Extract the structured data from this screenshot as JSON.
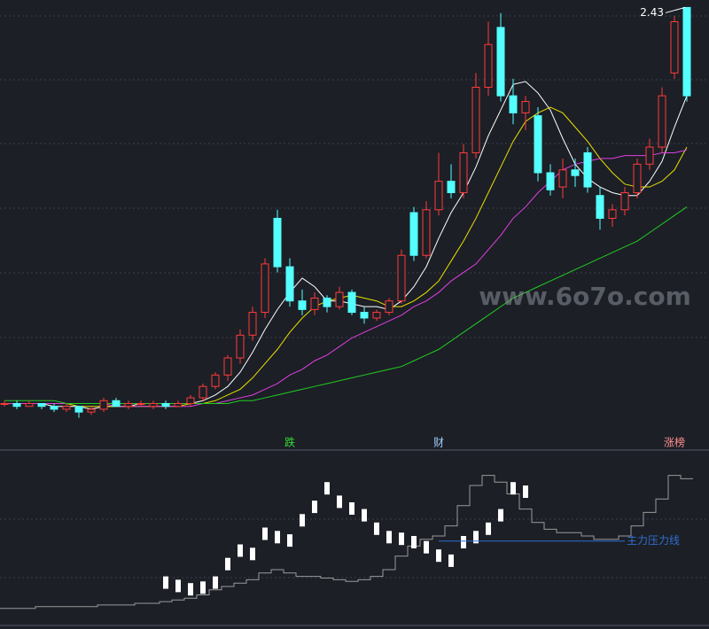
{
  "watermark": "www.6o7o.com",
  "chart_data": [
    {
      "type": "candlestick",
      "up_color": "#ff3b3b",
      "down_color": "#54ffff",
      "ylim": [
        0.97,
        2.45
      ],
      "open": [
        1.04,
        1.04,
        1.03,
        1.04,
        1.03,
        1.02,
        1.03,
        1.01,
        1.02,
        1.05,
        1.03,
        1.04,
        1.03,
        1.04,
        1.03,
        1.04,
        1.06,
        1.1,
        1.14,
        1.2,
        1.28,
        1.36,
        1.69,
        1.52,
        1.4,
        1.37,
        1.41,
        1.38,
        1.43,
        1.36,
        1.34,
        1.36,
        1.4,
        1.71,
        1.56,
        1.72,
        1.82,
        1.78,
        1.92,
        2.15,
        2.36,
        2.12,
        2.06,
        2.05,
        1.85,
        1.8,
        1.86,
        1.92,
        1.77,
        1.69,
        1.72,
        1.78,
        1.88,
        1.94,
        2.2,
        2.43
      ],
      "high": [
        1.05,
        1.05,
        1.05,
        1.04,
        1.04,
        1.04,
        1.03,
        1.03,
        1.06,
        1.06,
        1.05,
        1.05,
        1.05,
        1.05,
        1.05,
        1.07,
        1.11,
        1.15,
        1.21,
        1.3,
        1.38,
        1.55,
        1.72,
        1.55,
        1.44,
        1.43,
        1.42,
        1.45,
        1.44,
        1.38,
        1.37,
        1.41,
        1.58,
        1.73,
        1.75,
        1.92,
        1.88,
        1.95,
        2.2,
        2.38,
        2.41,
        2.18,
        2.12,
        2.08,
        1.88,
        1.9,
        1.9,
        1.94,
        1.8,
        1.74,
        1.8,
        1.9,
        1.97,
        2.15,
        2.4,
        2.43
      ],
      "low": [
        1.03,
        1.02,
        1.03,
        1.02,
        1.01,
        1.01,
        0.99,
        1.0,
        1.01,
        1.03,
        1.02,
        1.03,
        1.02,
        1.02,
        1.03,
        1.03,
        1.05,
        1.09,
        1.12,
        1.18,
        1.26,
        1.34,
        1.5,
        1.38,
        1.35,
        1.35,
        1.36,
        1.37,
        1.35,
        1.32,
        1.33,
        1.35,
        1.39,
        1.54,
        1.55,
        1.7,
        1.76,
        1.76,
        1.9,
        2.12,
        2.1,
        2.02,
        2.0,
        1.82,
        1.77,
        1.76,
        1.8,
        1.78,
        1.65,
        1.66,
        1.7,
        1.76,
        1.86,
        1.92,
        2.18,
        2.1
      ],
      "close": [
        1.04,
        1.03,
        1.04,
        1.03,
        1.02,
        1.03,
        1.01,
        1.02,
        1.05,
        1.03,
        1.04,
        1.04,
        1.04,
        1.03,
        1.04,
        1.06,
        1.1,
        1.14,
        1.2,
        1.28,
        1.36,
        1.53,
        1.52,
        1.4,
        1.37,
        1.41,
        1.38,
        1.43,
        1.36,
        1.34,
        1.36,
        1.4,
        1.56,
        1.56,
        1.72,
        1.82,
        1.78,
        1.92,
        2.15,
        2.3,
        2.12,
        2.06,
        2.1,
        1.85,
        1.79,
        1.86,
        1.84,
        1.8,
        1.69,
        1.72,
        1.78,
        1.88,
        1.94,
        2.12,
        2.38,
        2.12
      ],
      "series": [
        {
          "color": "#ffffff",
          "values": [
            1.04,
            1.04,
            1.04,
            1.04,
            1.03,
            1.03,
            1.03,
            1.02,
            1.03,
            1.03,
            1.03,
            1.04,
            1.04,
            1.04,
            1.04,
            1.04,
            1.05,
            1.07,
            1.1,
            1.15,
            1.22,
            1.3,
            1.37,
            1.43,
            1.48,
            1.45,
            1.4,
            1.4,
            1.39,
            1.38,
            1.38,
            1.37,
            1.4,
            1.45,
            1.52,
            1.62,
            1.71,
            1.78,
            1.87,
            1.98,
            2.07,
            2.16,
            2.17,
            2.13,
            2.07,
            1.97,
            1.88,
            1.83,
            1.8,
            1.78,
            1.77,
            1.77,
            1.82,
            1.89,
            2.01,
            2.12
          ]
        },
        {
          "color": "#e8e000",
          "values": [
            1.04,
            1.04,
            1.04,
            1.04,
            1.04,
            1.04,
            1.03,
            1.03,
            1.03,
            1.03,
            1.03,
            1.03,
            1.03,
            1.03,
            1.03,
            1.04,
            1.04,
            1.05,
            1.07,
            1.09,
            1.13,
            1.18,
            1.23,
            1.29,
            1.34,
            1.38,
            1.4,
            1.41,
            1.42,
            1.41,
            1.4,
            1.38,
            1.38,
            1.4,
            1.43,
            1.47,
            1.54,
            1.61,
            1.69,
            1.78,
            1.87,
            1.96,
            2.03,
            2.06,
            2.08,
            2.06,
            2.01,
            1.96,
            1.9,
            1.85,
            1.81,
            1.8,
            1.8,
            1.82,
            1.86,
            1.94
          ]
        },
        {
          "color": "#e040e0",
          "values": [
            1.04,
            1.04,
            1.04,
            1.04,
            1.04,
            1.04,
            1.04,
            1.04,
            1.04,
            1.03,
            1.03,
            1.03,
            1.03,
            1.03,
            1.03,
            1.03,
            1.04,
            1.04,
            1.05,
            1.06,
            1.07,
            1.09,
            1.11,
            1.14,
            1.16,
            1.19,
            1.21,
            1.24,
            1.27,
            1.29,
            1.31,
            1.33,
            1.35,
            1.38,
            1.4,
            1.43,
            1.47,
            1.5,
            1.53,
            1.58,
            1.63,
            1.69,
            1.73,
            1.78,
            1.82,
            1.86,
            1.88,
            1.89,
            1.9,
            1.9,
            1.91,
            1.91,
            1.91,
            1.92,
            1.92,
            1.93
          ]
        },
        {
          "color": "#22cc22",
          "values": [
            1.05,
            1.05,
            1.05,
            1.05,
            1.05,
            1.04,
            1.04,
            1.04,
            1.04,
            1.04,
            1.04,
            1.04,
            1.04,
            1.04,
            1.04,
            1.04,
            1.04,
            1.04,
            1.04,
            1.05,
            1.05,
            1.06,
            1.07,
            1.08,
            1.09,
            1.1,
            1.11,
            1.12,
            1.13,
            1.14,
            1.15,
            1.16,
            1.17,
            1.19,
            1.21,
            1.23,
            1.26,
            1.29,
            1.32,
            1.35,
            1.38,
            1.41,
            1.43,
            1.45,
            1.47,
            1.49,
            1.51,
            1.53,
            1.55,
            1.57,
            1.59,
            1.61,
            1.64,
            1.67,
            1.7,
            1.73
          ]
        }
      ],
      "annotations": [
        {
          "text": "跌",
          "index": 23,
          "color": "#33dd33"
        },
        {
          "text": "财",
          "index": 35,
          "color": "#9fd0ff"
        },
        {
          "text": "涨榜",
          "index": 54,
          "color": "#ff9090"
        }
      ]
    },
    {
      "type": "indicator",
      "ylim": [
        0,
        100
      ],
      "bars": [
        null,
        null,
        null,
        null,
        null,
        null,
        null,
        null,
        null,
        null,
        null,
        null,
        null,
        26,
        24,
        22,
        23,
        26,
        37,
        45,
        43,
        55,
        53,
        51,
        63,
        71,
        82,
        74,
        70,
        66,
        58,
        53,
        52,
        50,
        47,
        42,
        39,
        50,
        53,
        58,
        66,
        82,
        80,
        null,
        null,
        null,
        null,
        null,
        null,
        null,
        null,
        null,
        null,
        null,
        null,
        null
      ],
      "bar_color": "#ffffff",
      "step": [
        7,
        7,
        7,
        8,
        8,
        8,
        8,
        8,
        9,
        9,
        9,
        10,
        10,
        11,
        12,
        13,
        15,
        18,
        20,
        22,
        24,
        28,
        30,
        28,
        26,
        26,
        25,
        24,
        23,
        24,
        26,
        30,
        38,
        44,
        48,
        50,
        56,
        68,
        80,
        86,
        82,
        75,
        66,
        58,
        54,
        52,
        52,
        50,
        48,
        48,
        50,
        56,
        64,
        72,
        86,
        84
      ],
      "step_color": "#9a9a9a",
      "pressure_line": {
        "label": "主力压力线",
        "value": 47,
        "start": 35,
        "end": 50,
        "color": "#2f6fd0"
      }
    }
  ]
}
